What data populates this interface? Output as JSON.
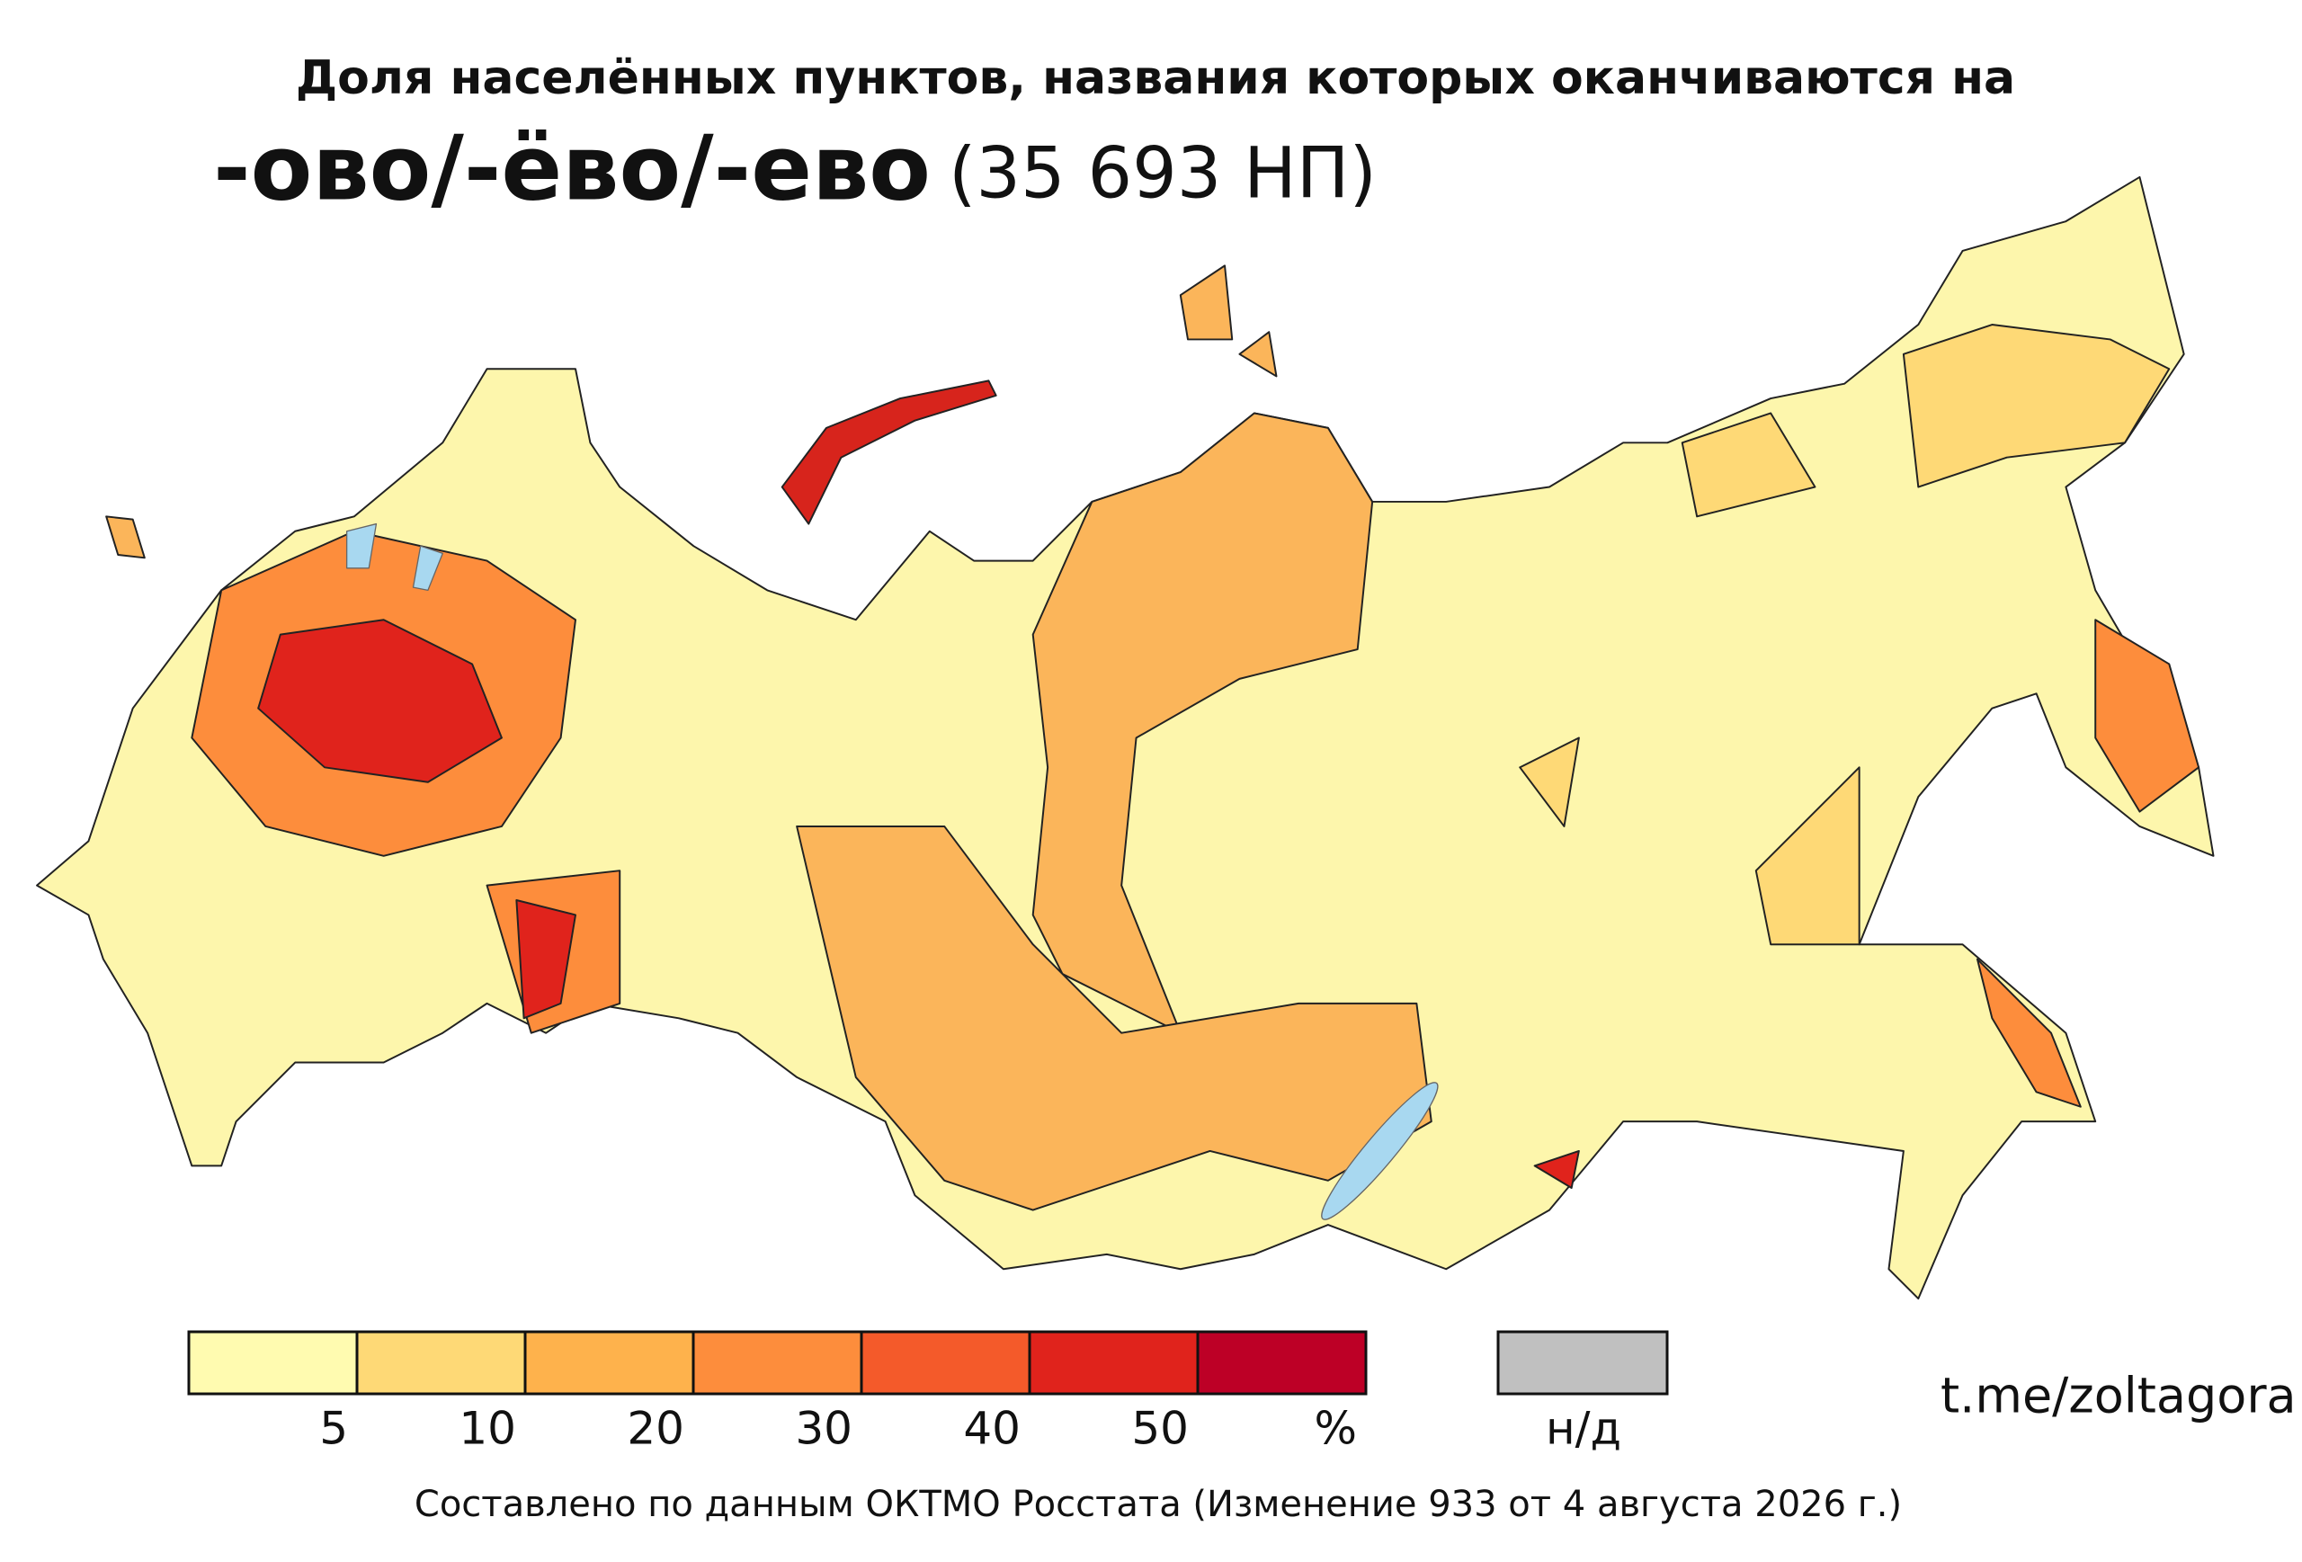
{
  "header": {
    "title": "Доля населённых пунктов, названия которых оканчиваются на",
    "suffixes": "-ово/-ёво/-ево",
    "count": "(35 693 НП)"
  },
  "legend": {
    "colors": [
      "#fffbb0",
      "#fed976",
      "#feb24c",
      "#fd8d3c",
      "#f45a2a",
      "#e0231c",
      "#bd0026"
    ],
    "ticks": [
      "5",
      "10",
      "20",
      "30",
      "40",
      "50"
    ],
    "unit": "%",
    "na_color": "#c0c0c0",
    "na_label": "н/д"
  },
  "source": "t.me/zoltagora",
  "footer": "Составлено по данным ОКТМО Росстата (Изменение 933 от 4 августа 2026 г.)"
}
